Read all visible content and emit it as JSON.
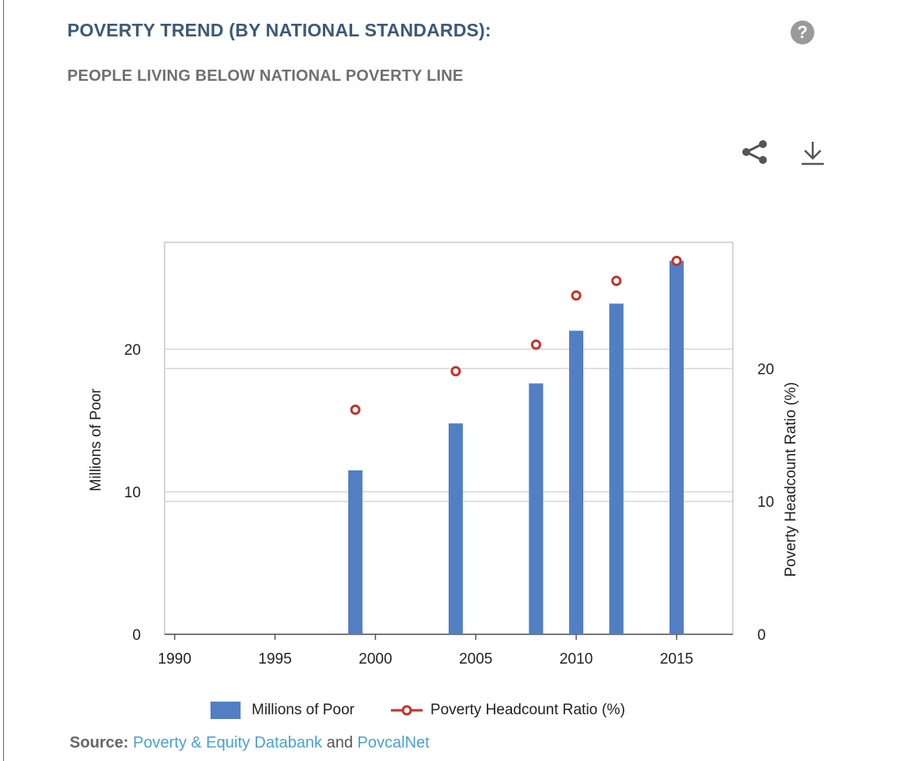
{
  "header": {
    "title": "POVERTY TREND (BY NATIONAL STANDARDS):",
    "subtitle": "PEOPLE LIVING BELOW NATIONAL POVERTY LINE",
    "help_glyph": "?"
  },
  "icons": {
    "share": "share-icon",
    "download": "download-icon",
    "help": "help-icon"
  },
  "colors": {
    "bars": "#527fc4",
    "markers": "#c8302a",
    "title": "#3c5a78"
  },
  "chart_data": {
    "type": "bar",
    "x": [
      1999,
      2004,
      2008,
      2010,
      2012,
      2015
    ],
    "series": [
      {
        "name": "Millions of Poor",
        "type": "bar",
        "axis": "left",
        "values": [
          11.5,
          14.8,
          17.6,
          21.3,
          23.2,
          26.2
        ]
      },
      {
        "name": "Poverty Headcount Ratio (%)",
        "type": "scatter",
        "axis": "right",
        "values": [
          16.9,
          19.8,
          21.8,
          25.5,
          26.6,
          28.1
        ]
      }
    ],
    "xlim": [
      1989.5,
      2017.8
    ],
    "ylim_left": [
      0,
      27.5
    ],
    "ylim_right": [
      0,
      29.5
    ],
    "x_ticks": [
      "1990",
      "1995",
      "2000",
      "2005",
      "2010",
      "2015"
    ],
    "y_ticks_left": [
      "0",
      "10",
      "20"
    ],
    "y_ticks_right": [
      "0",
      "10",
      "20"
    ],
    "ylabel_left": "Millions of Poor",
    "ylabel_right": "Poverty Headcount Ratio (%)",
    "grid": true,
    "legend_position": "bottom"
  },
  "source": {
    "label": "Source:",
    "link1": "Poverty & Equity Databank",
    "and": "and",
    "link2": "PovcalNet"
  }
}
